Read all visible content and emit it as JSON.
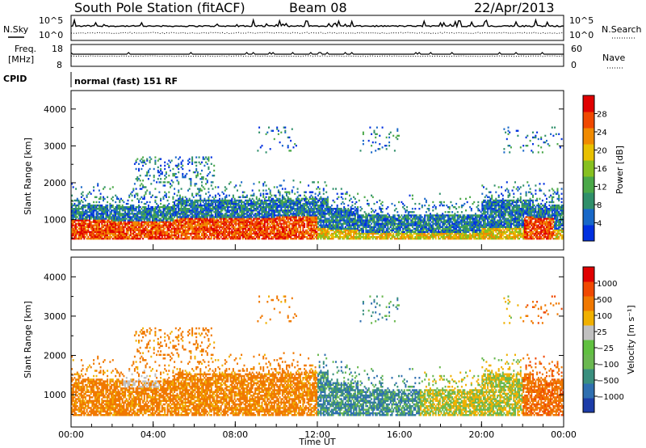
{
  "header": {
    "title": "South Pole Station (fitACF)",
    "beam": "Beam 08",
    "date": "22/Apr/2013"
  },
  "top_panels": {
    "nsky_label": "N.Sky",
    "nsearch_label": "N.Search",
    "noise_tick_top": "10^5",
    "noise_tick_bottom": "10^0",
    "freq_label_line1": "Freq.",
    "freq_label_line2": "[MHz]",
    "freq_ticks": [
      "18",
      "8"
    ],
    "nave_label": "Nave",
    "nave_ticks": [
      "60",
      "0"
    ],
    "cpid_label": "CPID",
    "cpid_value": "normal (fast) 151 RF"
  },
  "chart_data": [
    {
      "type": "heatmap",
      "name": "power",
      "ylabel": "Slant Range [km]",
      "ylim": [
        180,
        4500
      ],
      "y_ticks": [
        "4000",
        "3000",
        "2000",
        "1000"
      ],
      "colorbar_label": "Power [dB]",
      "colorbar_ticks": [
        "28",
        "24",
        "20",
        "16",
        "12",
        "8",
        "4"
      ],
      "colorbar_colors": [
        "#0030e0",
        "#1868c8",
        "#2f8f6a",
        "#4aa848",
        "#86c020",
        "#e8c000",
        "#f08a00",
        "#f04800",
        "#e00000"
      ]
    },
    {
      "type": "heatmap",
      "name": "velocity",
      "ylabel": "Slant Range [km]",
      "xlabel": "Time UT",
      "x_ticks": [
        "00:00",
        "04:00",
        "08:00",
        "12:00",
        "16:00",
        "20:00",
        "00:00"
      ],
      "ylim": [
        180,
        4500
      ],
      "y_ticks": [
        "4000",
        "3000",
        "2000",
        "1000"
      ],
      "colorbar_label": "Velocity [m s⁻¹]",
      "colorbar_ticks": [
        "1000",
        "500",
        "100",
        "25",
        "−25",
        "−100",
        "−500",
        "−1000"
      ],
      "colorbar_colors": [
        "#1c3ca8",
        "#2f6fb0",
        "#3a8f7e",
        "#6ab850",
        "#60c040",
        "#c0c0c0",
        "#f0b000",
        "#f07800",
        "#f04800",
        "#e00000"
      ]
    }
  ]
}
